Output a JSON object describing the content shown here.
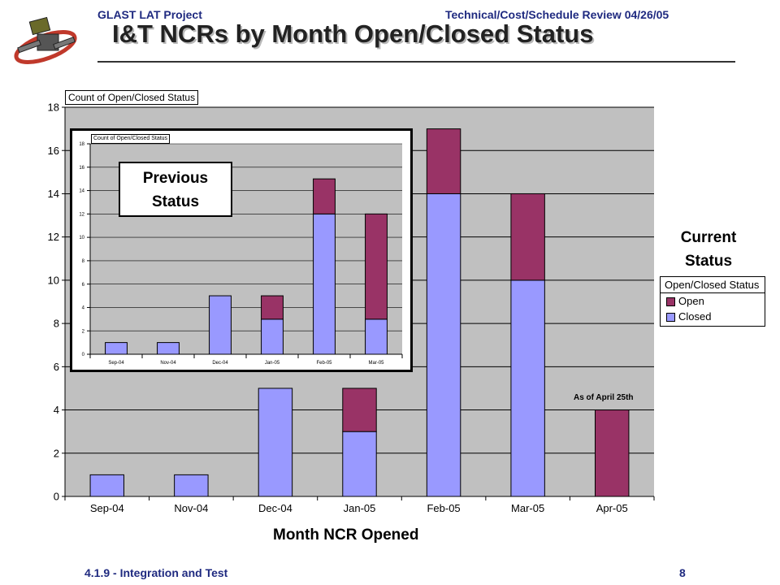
{
  "header": {
    "left": "GLAST LAT Project",
    "right": "Technical/Cost/Schedule Review 04/26/05",
    "title": "I&T NCRs by Month Open/Closed Status"
  },
  "footer": {
    "left": "4.1.9 - Integration and Test",
    "right": "8"
  },
  "colors": {
    "open": "#993366",
    "closed": "#9999ff",
    "plot_bg": "#c0c0c0",
    "header_text": "#1f2a80"
  },
  "chart_data": [
    {
      "type": "bar",
      "stacked": true,
      "field_button": "Count of Open/Closed Status",
      "xlabel": "Month NCR Opened",
      "ylim": [
        0,
        18
      ],
      "ytick_step": 2,
      "grid": true,
      "categories": [
        "Sep-04",
        "Nov-04",
        "Dec-04",
        "Jan-05",
        "Feb-05",
        "Mar-05",
        "Apr-05"
      ],
      "series": [
        {
          "name": "Closed",
          "values": [
            1,
            1,
            5,
            3,
            14,
            10,
            0
          ]
        },
        {
          "name": "Open",
          "values": [
            0,
            0,
            0,
            2,
            3,
            4,
            4
          ]
        }
      ],
      "side_label": "Current Status",
      "legend_title": "Open/Closed Status",
      "legend_placement": "right",
      "annotation": "As of April 25th"
    },
    {
      "type": "bar",
      "stacked": true,
      "field_button": "Count of Open/Closed Status",
      "ylim": [
        0,
        18
      ],
      "ytick_step": 2,
      "grid": true,
      "categories": [
        "Sep-04",
        "Nov-04",
        "Dec-04",
        "Jan-05",
        "Feb-05",
        "Mar-05"
      ],
      "series": [
        {
          "name": "Closed",
          "values": [
            1,
            1,
            5,
            3,
            12,
            3
          ]
        },
        {
          "name": "Open",
          "values": [
            0,
            0,
            0,
            2,
            3,
            9
          ]
        }
      ],
      "overlay_label": "Previous Status"
    }
  ]
}
